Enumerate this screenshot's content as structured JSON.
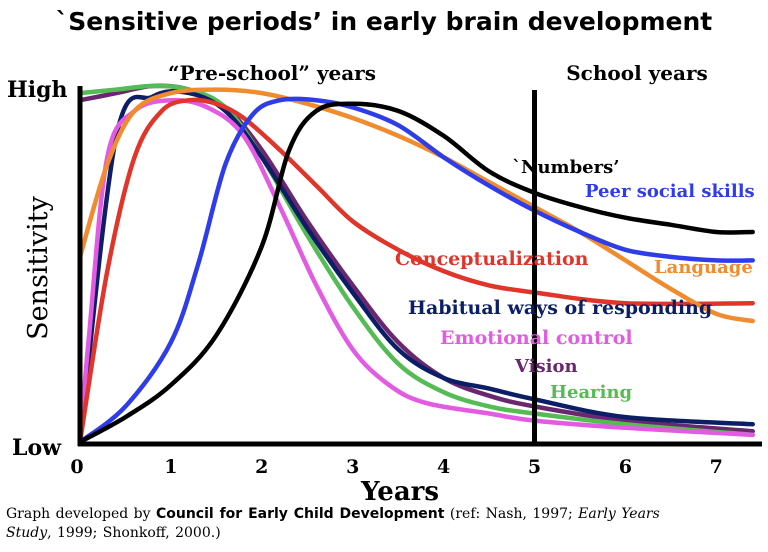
{
  "chart_data": {
    "type": "line",
    "title": "`Sensitive periods’ in early brain development",
    "xlabel": "Years",
    "ylabel": "Sensitivity",
    "xlim": [
      0,
      7.4
    ],
    "ylim": [
      0,
      1
    ],
    "xticks": [
      "0",
      "1",
      "2",
      "3",
      "4",
      "5",
      "6",
      "7"
    ],
    "y_tick_labels": {
      "low": "Low",
      "high": "High"
    },
    "region_labels": {
      "preschool": "“Pre-school” years",
      "school": "School years"
    },
    "divider_x": 5,
    "grid": false,
    "series": [
      {
        "name": "Vision",
        "color": "#6b2670",
        "x": [
          0,
          0.4,
          0.8,
          1.2,
          1.6,
          2.0,
          2.5,
          3.0,
          3.5,
          4.0,
          4.5,
          5.0,
          6.0,
          7.4
        ],
        "y": [
          0.96,
          0.98,
          1.0,
          0.99,
          0.94,
          0.82,
          0.62,
          0.44,
          0.28,
          0.18,
          0.13,
          0.1,
          0.06,
          0.03
        ]
      },
      {
        "name": "Hearing",
        "color": "#55bb55",
        "x": [
          0,
          0.4,
          0.8,
          1.2,
          1.6,
          2.0,
          2.5,
          3.0,
          3.5,
          4.0,
          4.5,
          5.0,
          6.0,
          7.4
        ],
        "y": [
          0.98,
          0.99,
          1.0,
          0.99,
          0.94,
          0.8,
          0.58,
          0.38,
          0.22,
          0.14,
          0.1,
          0.08,
          0.05,
          0.02
        ]
      },
      {
        "name": "Habitual ways of responding",
        "color": "#0c1f66",
        "x": [
          0,
          0.4,
          0.8,
          1.2,
          1.6,
          2.0,
          2.5,
          3.0,
          3.5,
          4.0,
          4.5,
          5.0,
          6.0,
          7.4
        ],
        "y": [
          0.0,
          0.86,
          0.97,
          0.98,
          0.93,
          0.8,
          0.6,
          0.42,
          0.26,
          0.18,
          0.15,
          0.12,
          0.07,
          0.05
        ]
      },
      {
        "name": "Emotional control",
        "color": "#e35ae3",
        "x": [
          0,
          0.1,
          0.3,
          0.6,
          1.0,
          1.4,
          1.8,
          2.2,
          2.6,
          3.0,
          3.4,
          3.8,
          4.5,
          5.0,
          6.0,
          7.4
        ],
        "y": [
          0.0,
          0.3,
          0.8,
          0.93,
          0.96,
          0.94,
          0.86,
          0.66,
          0.44,
          0.26,
          0.16,
          0.11,
          0.08,
          0.06,
          0.04,
          0.02
        ]
      },
      {
        "name": "Conceptualization",
        "color": "#e0352a",
        "x": [
          0,
          0.3,
          0.6,
          0.9,
          1.2,
          1.5,
          1.8,
          2.2,
          2.6,
          3.0,
          3.5,
          4.0,
          4.5,
          5.0,
          6.0,
          7.4
        ],
        "y": [
          0.0,
          0.48,
          0.8,
          0.93,
          0.96,
          0.95,
          0.91,
          0.82,
          0.72,
          0.62,
          0.54,
          0.48,
          0.44,
          0.42,
          0.39,
          0.39
        ]
      },
      {
        "name": "Language",
        "color": "#f08c2e",
        "x": [
          0,
          0.3,
          0.6,
          1.0,
          1.5,
          2.0,
          2.5,
          3.0,
          3.5,
          4.0,
          4.5,
          5.0,
          5.5,
          6.0,
          6.5,
          7.0,
          7.4
        ],
        "y": [
          0.52,
          0.78,
          0.93,
          0.98,
          0.99,
          0.98,
          0.95,
          0.91,
          0.86,
          0.8,
          0.73,
          0.66,
          0.59,
          0.51,
          0.43,
          0.36,
          0.34
        ]
      },
      {
        "name": "Peer social skills",
        "color": "#2e3de8",
        "x": [
          0,
          0.5,
          1.0,
          1.3,
          1.6,
          1.9,
          2.2,
          2.6,
          3.0,
          3.5,
          4.0,
          4.5,
          5.0,
          5.5,
          6.0,
          6.5,
          7.0,
          7.4
        ],
        "y": [
          0.0,
          0.1,
          0.28,
          0.5,
          0.78,
          0.92,
          0.96,
          0.96,
          0.94,
          0.89,
          0.8,
          0.72,
          0.65,
          0.59,
          0.54,
          0.52,
          0.51,
          0.51
        ]
      },
      {
        "name": "`Numbers’",
        "color": "#000000",
        "x": [
          0,
          0.5,
          1.0,
          1.5,
          2.0,
          2.3,
          2.6,
          3.0,
          3.5,
          4.0,
          4.5,
          5.0,
          5.5,
          6.0,
          6.5,
          7.0,
          7.4
        ],
        "y": [
          0.0,
          0.07,
          0.16,
          0.3,
          0.55,
          0.82,
          0.93,
          0.95,
          0.93,
          0.86,
          0.76,
          0.7,
          0.66,
          0.63,
          0.61,
          0.59,
          0.59
        ]
      }
    ]
  },
  "annotations": {
    "numbers": "`Numbers’",
    "peer": "Peer social skills",
    "concept": "Conceptualization",
    "language": "Language",
    "habitual": "Habitual ways of responding",
    "emotional": "Emotional control",
    "vision": "Vision",
    "hearing": "Hearing"
  },
  "caption": {
    "prefix": "Graph developed by ",
    "org": "Council for Early Child Development",
    "ref_start": " (ref: Nash, 1997; ",
    "ref_title1": "Early Years",
    "ref_title2": "Study",
    "ref_end": ", 1999; Shonkoff,  2000.)"
  }
}
